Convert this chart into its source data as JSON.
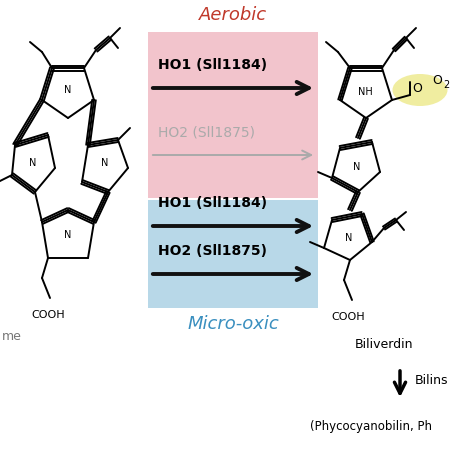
{
  "aerobic_label": "Aerobic",
  "aerobic_color": "#c0392b",
  "microoxic_label": "Micro-oxic",
  "microoxic_color": "#3a8fbf",
  "aerobic_box_color": "#f2c4cc",
  "microoxic_box_color": "#b8d8e8",
  "ho1_aerobic_label": "HO1 (Sll1184)",
  "ho2_aerobic_label": "HO2 (Sll1875)",
  "ho1_microoxic_label": "HO1 (Sll1184)",
  "ho2_microoxic_label": "HO2 (Sll1875)",
  "biliverdin_label": "Biliverdin",
  "bilins_label": "Bilins",
  "bilins_sub_label": "(Phycocyanobilin, Ph",
  "background_color": "#ffffff",
  "arrow_color_black": "#111111",
  "arrow_color_gray": "#aaaaaa",
  "yellow_highlight": "#f0eda0",
  "fig_width": 4.74,
  "fig_height": 4.74,
  "dpi": 100
}
